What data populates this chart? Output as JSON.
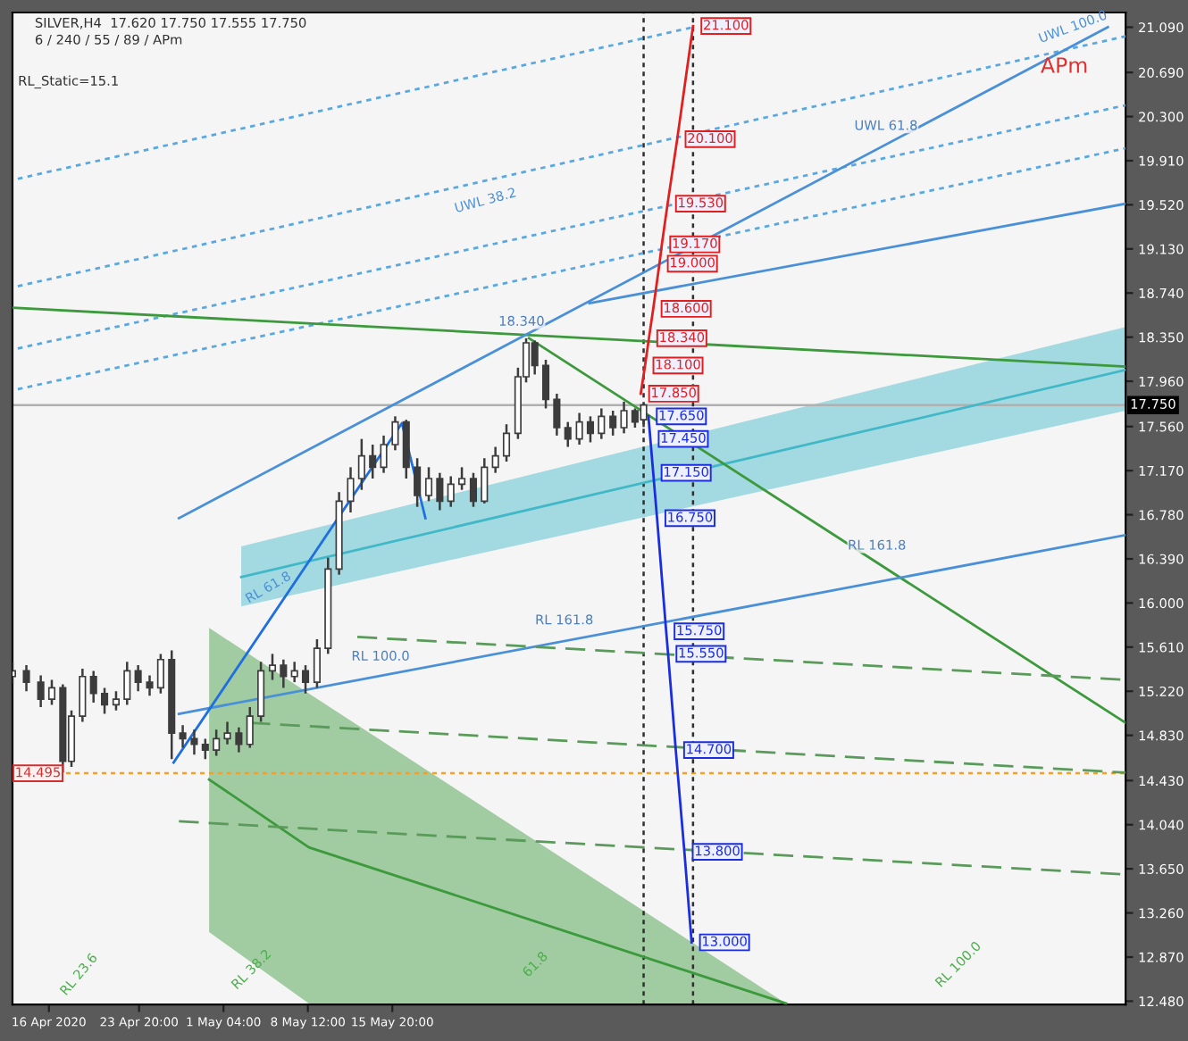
{
  "chart_data": {
    "type": "candlestick",
    "title": "SILVER,H4  17.620 17.750 17.555 17.750",
    "subtitle": "6 / 240 / 55 / 89 / APm",
    "xlim": [
      "2020-04-12T20:00",
      "2020-07-18T13:00"
    ],
    "ylim": [
      12.45,
      21.22
    ],
    "xticks": [
      {
        "value": "2020-04-16T00:00",
        "label": "16 Apr 2020"
      },
      {
        "value": "2020-04-23T20:00",
        "label": "23 Apr 20:00"
      },
      {
        "value": "2020-05-01T04:00",
        "label": "1 May 04:00"
      },
      {
        "value": "2020-05-08T12:00",
        "label": "8 May 12:00"
      },
      {
        "value": "2020-05-15T20:00",
        "label": "15 May 20:00"
      }
    ],
    "yticks": [
      {
        "value": 21.09,
        "label": "21.090"
      },
      {
        "value": 20.69,
        "label": "20.690"
      },
      {
        "value": 20.3,
        "label": "20.300"
      },
      {
        "value": 19.91,
        "label": "19.910"
      },
      {
        "value": 19.52,
        "label": "19.520"
      },
      {
        "value": 19.13,
        "label": "19.130"
      },
      {
        "value": 18.74,
        "label": "18.740"
      },
      {
        "value": 18.35,
        "label": "18.350"
      },
      {
        "value": 17.96,
        "label": "17.960"
      },
      {
        "value": 17.56,
        "label": "17.560"
      },
      {
        "value": 17.17,
        "label": "17.170"
      },
      {
        "value": 16.78,
        "label": "16.780"
      },
      {
        "value": 16.39,
        "label": "16.390"
      },
      {
        "value": 16.0,
        "label": "16.000"
      },
      {
        "value": 15.61,
        "label": "15.610"
      },
      {
        "value": 15.22,
        "label": "15.220"
      },
      {
        "value": 14.83,
        "label": "14.830"
      },
      {
        "value": 14.43,
        "label": "14.430"
      },
      {
        "value": 14.04,
        "label": "14.040"
      },
      {
        "value": 13.65,
        "label": "13.650"
      },
      {
        "value": 13.26,
        "label": "13.260"
      },
      {
        "value": 12.87,
        "label": "12.870"
      },
      {
        "value": 12.48,
        "label": "12.480"
      }
    ],
    "grid": false,
    "legend": false,
    "series": [
      {
        "type": "line",
        "color": "#5aa8e0",
        "line_style": "dotted",
        "x": [
          "2020-04-13T07:00",
          "2020-06-10T23:00"
        ],
        "values": [
          19.75,
          21.09
        ]
      },
      {
        "type": "line",
        "color": "#5aa8e0",
        "line_style": "dotted",
        "x": [
          "2020-04-13T07:00",
          "2020-07-18T13:00"
        ],
        "values": [
          18.8,
          21.01
        ]
      },
      {
        "type": "line",
        "color": "#5aa8e0",
        "line_style": "dotted",
        "x": [
          "2020-04-13T07:00",
          "2020-07-18T13:00"
        ],
        "values": [
          18.25,
          20.4
        ]
      },
      {
        "type": "line",
        "color": "#5aa8e0",
        "line_style": "dotted",
        "x": [
          "2020-04-13T07:00",
          "2020-07-18T13:00"
        ],
        "values": [
          17.89,
          20.02
        ]
      },
      {
        "type": "line",
        "color": "#40b8c8",
        "line_style": "solid",
        "x": [
          "2020-05-02T17:00",
          "2020-07-18T13:00"
        ],
        "values": [
          16.23,
          18.06
        ],
        "lower": [
          15.97,
          17.7
        ],
        "upper": [
          16.5,
          18.44
        ]
      },
      {
        "type": "line",
        "color": "#3c9a3c",
        "line_style": "solid",
        "x": [
          "2020-04-29T22:00",
          "2020-05-08T14:00",
          "2020-06-19T01:00"
        ],
        "values": [
          14.44,
          13.84,
          12.46
        ],
        "lower": [
          13.09,
          12.46,
          12.46
        ],
        "upper": [
          15.78,
          15.2,
          12.46
        ]
      },
      {
        "type": "line",
        "color": "#3c9a3c",
        "line_style": "solid",
        "x": [
          "2020-04-12T20:00",
          "2020-07-18T13:00"
        ],
        "values": [
          18.61,
          18.09
        ]
      },
      {
        "type": "line",
        "color": "#3c9a3c",
        "line_style": "solid",
        "x": [
          "2020-05-27T17:00",
          "2020-07-18T13:00"
        ],
        "values": [
          18.34,
          14.94
        ]
      },
      {
        "type": "line",
        "color": "#4a90d9",
        "line_style": "solid",
        "x": [
          "2020-04-27T07:00",
          "2020-07-18T13:00"
        ],
        "values": [
          15.02,
          16.6
        ]
      },
      {
        "type": "line",
        "color": "#4a90d9",
        "line_style": "solid",
        "x": [
          "2020-04-27T07:00",
          "2020-07-17T00:00"
        ],
        "values": [
          16.75,
          21.09
        ]
      },
      {
        "type": "line",
        "color": "#4a90d9",
        "line_style": "solid",
        "x": [
          "2020-06-01T23:00",
          "2020-07-18T13:00"
        ],
        "values": [
          18.65,
          19.53
        ]
      },
      {
        "type": "line",
        "color": "#5a9a5a",
        "line_style": "dashed",
        "x": [
          "2020-05-12T19:00",
          "2020-07-18T13:00"
        ],
        "values": [
          15.7,
          15.32
        ]
      },
      {
        "type": "line",
        "color": "#5a9a5a",
        "line_style": "dashed",
        "x": [
          "2020-05-03T12:00",
          "2020-07-18T13:00"
        ],
        "values": [
          14.94,
          14.5
        ]
      },
      {
        "type": "line",
        "color": "#5a9a5a",
        "line_style": "dashed",
        "x": [
          "2020-04-27T07:00",
          "2020-07-18T13:00"
        ],
        "values": [
          14.07,
          13.6
        ]
      },
      {
        "type": "line",
        "color": "#1f6fe0",
        "line_style": "solid",
        "x": [
          "2020-04-26T20:00",
          "2020-05-16T16:00",
          "2020-05-18T17:00"
        ],
        "values": [
          14.59,
          17.59,
          16.75
        ]
      },
      {
        "type": "candlestick",
        "color": "#3c3c3c",
        "x": [
          "2020-04-12T20:00",
          "2020-04-14T01:00",
          "2020-04-15T07:00",
          "2020-04-16T06:00",
          "2020-04-17T05:00",
          "2020-04-17T23:00",
          "2020-04-18T22:00",
          "2020-04-19T21:00",
          "2020-04-20T20:00",
          "2020-04-21T20:00",
          "2020-04-22T19:00",
          "2020-04-23T18:00",
          "2020-04-24T18:00",
          "2020-04-25T17:00",
          "2020-04-26T16:00",
          "2020-04-27T15:00",
          "2020-04-28T15:00",
          "2020-04-29T14:00",
          "2020-04-30T13:00",
          "2020-05-01T12:00",
          "2020-05-02T12:00",
          "2020-05-03T11:00",
          "2020-05-04T10:00",
          "2020-05-05T10:00",
          "2020-05-06T09:00",
          "2020-05-07T08:00",
          "2020-05-08T07:00",
          "2020-05-09T07:00",
          "2020-05-10T06:00",
          "2020-05-11T05:00",
          "2020-05-12T05:00",
          "2020-05-13T04:00",
          "2020-05-14T03:00",
          "2020-05-15T02:00",
          "2020-05-16T02:00",
          "2020-05-17T01:00",
          "2020-05-18T00:00",
          "2020-05-19T00:00",
          "2020-05-19T23:00",
          "2020-05-20T22:00",
          "2020-05-21T21:00",
          "2020-05-22T21:00",
          "2020-05-23T20:00",
          "2020-05-24T19:00",
          "2020-05-25T18:00",
          "2020-05-26T18:00",
          "2020-05-27T11:00",
          "2020-05-28T05:00",
          "2020-05-29T04:00",
          "2020-05-30T03:00",
          "2020-05-31T02:00",
          "2020-06-01T02:00",
          "2020-06-02T01:00",
          "2020-06-03T00:00",
          "2020-06-04T00:00",
          "2020-06-04T23:00",
          "2020-06-05T22:00",
          "2020-06-06T16:00"
        ],
        "ohlc": [
          [
            15.35,
            15.48,
            15.28,
            15.4
          ],
          [
            15.4,
            15.45,
            15.22,
            15.3
          ],
          [
            15.3,
            15.36,
            15.08,
            15.15
          ],
          [
            15.15,
            15.32,
            15.1,
            15.25
          ],
          [
            15.25,
            15.28,
            14.5,
            14.6
          ],
          [
            14.6,
            15.05,
            14.55,
            15.0
          ],
          [
            15.0,
            15.42,
            14.95,
            15.35
          ],
          [
            15.35,
            15.4,
            15.12,
            15.2
          ],
          [
            15.2,
            15.25,
            15.02,
            15.1
          ],
          [
            15.1,
            15.22,
            15.05,
            15.15
          ],
          [
            15.15,
            15.48,
            15.1,
            15.4
          ],
          [
            15.4,
            15.45,
            15.22,
            15.3
          ],
          [
            15.3,
            15.36,
            15.18,
            15.25
          ],
          [
            15.25,
            15.55,
            15.2,
            15.5
          ],
          [
            15.5,
            15.58,
            14.62,
            14.85
          ],
          [
            14.85,
            14.92,
            14.72,
            14.8
          ],
          [
            14.8,
            14.88,
            14.66,
            14.75
          ],
          [
            14.75,
            14.8,
            14.62,
            14.7
          ],
          [
            14.7,
            14.88,
            14.65,
            14.8
          ],
          [
            14.8,
            14.95,
            14.75,
            14.85
          ],
          [
            14.85,
            14.9,
            14.68,
            14.75
          ],
          [
            14.75,
            15.08,
            14.72,
            15.0
          ],
          [
            15.0,
            15.48,
            14.95,
            15.4
          ],
          [
            15.4,
            15.55,
            15.32,
            15.45
          ],
          [
            15.45,
            15.5,
            15.25,
            15.35
          ],
          [
            15.35,
            15.48,
            15.3,
            15.4
          ],
          [
            15.4,
            15.45,
            15.2,
            15.3
          ],
          [
            15.3,
            15.68,
            15.25,
            15.6
          ],
          [
            15.6,
            16.4,
            15.55,
            16.3
          ],
          [
            16.3,
            16.98,
            16.25,
            16.9
          ],
          [
            16.9,
            17.2,
            16.8,
            17.1
          ],
          [
            17.1,
            17.45,
            17.0,
            17.3
          ],
          [
            17.3,
            17.4,
            17.1,
            17.2
          ],
          [
            17.2,
            17.48,
            17.15,
            17.4
          ],
          [
            17.4,
            17.65,
            17.35,
            17.6
          ],
          [
            17.6,
            17.62,
            17.1,
            17.2
          ],
          [
            17.2,
            17.28,
            16.85,
            16.95
          ],
          [
            16.95,
            17.2,
            16.9,
            17.1
          ],
          [
            17.1,
            17.15,
            16.82,
            16.9
          ],
          [
            16.9,
            17.12,
            16.85,
            17.05
          ],
          [
            17.05,
            17.2,
            17.0,
            17.1
          ],
          [
            17.1,
            17.15,
            16.85,
            16.9
          ],
          [
            16.9,
            17.28,
            16.88,
            17.2
          ],
          [
            17.2,
            17.38,
            17.15,
            17.3
          ],
          [
            17.3,
            17.58,
            17.25,
            17.5
          ],
          [
            17.5,
            18.08,
            17.45,
            18.0
          ],
          [
            18.0,
            18.34,
            17.95,
            18.3
          ],
          [
            18.3,
            18.32,
            18.02,
            18.1
          ],
          [
            18.1,
            18.15,
            17.72,
            17.8
          ],
          [
            17.8,
            17.85,
            17.48,
            17.55
          ],
          [
            17.55,
            17.6,
            17.38,
            17.45
          ],
          [
            17.45,
            17.68,
            17.4,
            17.6
          ],
          [
            17.6,
            17.65,
            17.42,
            17.5
          ],
          [
            17.5,
            17.72,
            17.45,
            17.65
          ],
          [
            17.65,
            17.7,
            17.48,
            17.55
          ],
          [
            17.55,
            17.78,
            17.5,
            17.7
          ],
          [
            17.7,
            17.72,
            17.55,
            17.6
          ],
          [
            17.62,
            17.75,
            17.555,
            17.75
          ]
        ]
      },
      {
        "type": "line",
        "color": "#e02020",
        "line_style": "solid",
        "x": [
          "2020-06-06T10:00",
          "2020-06-06T19:00",
          "2020-06-07T03:00",
          "2020-06-07T12:00",
          "2020-06-08T01:00",
          "2020-06-08T06:00",
          "2020-06-08T18:00",
          "2020-06-09T14:00",
          "2020-06-10T23:00"
        ],
        "values": [
          17.85,
          18.1,
          18.34,
          18.6,
          19.0,
          19.17,
          19.53,
          20.1,
          21.1
        ],
        "value_labels": [
          "17.850",
          "18.100",
          "18.340",
          "18.600",
          "19.000",
          "19.170",
          "19.530",
          "20.100",
          "21.100"
        ]
      },
      {
        "type": "line",
        "color": "#1a2ee0",
        "line_style": "solid",
        "x": [
          "2020-06-07T02:00",
          "2020-06-07T06:00",
          "2020-06-07T12:00",
          "2020-06-07T20:00",
          "2020-06-08T15:00",
          "2020-06-08T19:00",
          "2020-06-09T11:00",
          "2020-06-10T05:00",
          "2020-06-10T20:00"
        ],
        "values": [
          17.65,
          17.45,
          17.15,
          16.75,
          15.75,
          15.55,
          14.7,
          13.8,
          13.0
        ],
        "value_labels": [
          "17.650",
          "17.450",
          "17.150",
          "16.750",
          "15.750",
          "15.550",
          "14.700",
          "13.800",
          "13.000"
        ]
      }
    ],
    "ref_lines": [
      {
        "axis": "y",
        "value": 17.75,
        "label": "17.750",
        "color": "#b0b0b0",
        "line_style": "solid"
      },
      {
        "axis": "y",
        "value": 14.495,
        "label": "14.495",
        "color": "#f0a030",
        "line_style": "dotted"
      },
      {
        "axis": "x",
        "value": "2020-06-06T16:00",
        "color": "#303030",
        "line_style": "dotted"
      },
      {
        "axis": "x",
        "value": "2020-06-10T23:00",
        "color": "#303030",
        "line_style": "dotted"
      }
    ],
    "annotations": [
      "RL_Static=15.1",
      "APm",
      "UWL 100.0",
      "RL 100.0",
      "RL 61.8",
      "RL 38.2",
      "RL 23.6",
      "61.8",
      "UWL 38.2",
      {
        "text": "18.340",
        "x": "2020-05-27T17:00",
        "y": 18.34
      },
      {
        "text": "UWL 61.8",
        "x": "2020-06-28T09:00",
        "y": 20.07
      },
      {
        "text": "RL 161.8",
        "x": "2020-06-27T14:00",
        "y": 16.36
      },
      {
        "text": "RL 161.8",
        "x": "2020-05-31T10:00",
        "y": 15.7
      },
      {
        "text": "RL 100.0",
        "x": "2020-05-15T11:00",
        "y": 15.38
      }
    ]
  }
}
